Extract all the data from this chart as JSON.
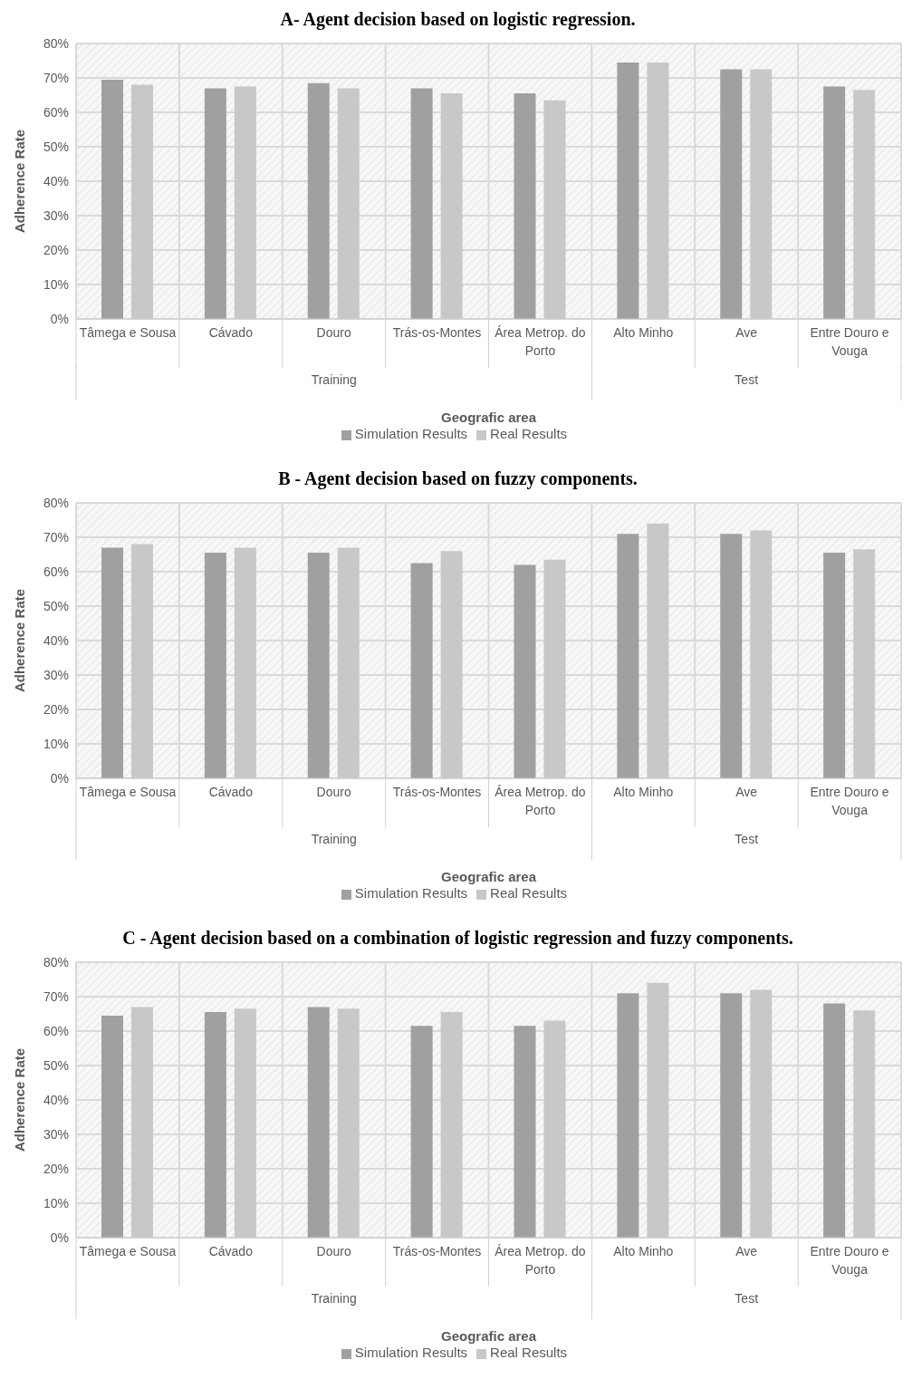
{
  "chart_data": [
    {
      "type": "bar",
      "title": "A- Agent decision based on logistic regression.",
      "xlabel": "Geografic area",
      "ylabel": "Adherence Rate",
      "categories": [
        "Tâmega e Sousa",
        "Cávado",
        "Douro",
        "Trás-os-Montes",
        "Área Metrop. do Porto",
        "Alto Minho",
        "Ave",
        "Entre Douro e Vouga"
      ],
      "series": [
        {
          "name": "Simulation Results",
          "color": "#a0a0a0",
          "values": [
            69.5,
            67,
            68.5,
            67,
            65.5,
            74.5,
            72.5,
            67.5
          ]
        },
        {
          "name": "Real Results",
          "color": "#c8c8c8",
          "values": [
            68,
            67.5,
            67,
            65.5,
            63.5,
            74.5,
            72.5,
            66.5
          ]
        }
      ],
      "ylim": [
        0,
        80
      ],
      "yticks": [
        {
          "value": 0,
          "label": "0%"
        },
        {
          "value": 10,
          "label": "10%"
        },
        {
          "value": 20,
          "label": "20%"
        },
        {
          "value": 30,
          "label": "30%"
        },
        {
          "value": 40,
          "label": "40%"
        },
        {
          "value": 50,
          "label": "50%"
        },
        {
          "value": 60,
          "label": "60%"
        },
        {
          "value": 70,
          "label": "70%"
        },
        {
          "value": 80,
          "label": "80%"
        }
      ],
      "grid": true,
      "legend": "bottom",
      "annotations": [
        "Training",
        "Test"
      ]
    },
    {
      "type": "bar",
      "title": "B - Agent decision based on fuzzy components.",
      "xlabel": "Geografic area",
      "ylabel": "Adherence Rate",
      "categories": [
        "Tâmega e Sousa",
        "Cávado",
        "Douro",
        "Trás-os-Montes",
        "Área Metrop. do Porto",
        "Alto Minho",
        "Ave",
        "Entre Douro e Vouga"
      ],
      "series": [
        {
          "name": "Simulation Results",
          "color": "#a0a0a0",
          "values": [
            67,
            65.5,
            65.5,
            62.5,
            62,
            71,
            71,
            65.5
          ]
        },
        {
          "name": "Real Results",
          "color": "#c8c8c8",
          "values": [
            68,
            67,
            67,
            66,
            63.5,
            74,
            72,
            66.5
          ]
        }
      ],
      "ylim": [
        0,
        80
      ],
      "yticks": [
        {
          "value": 0,
          "label": "0%"
        },
        {
          "value": 10,
          "label": "10%"
        },
        {
          "value": 20,
          "label": "20%"
        },
        {
          "value": 30,
          "label": "30%"
        },
        {
          "value": 40,
          "label": "40%"
        },
        {
          "value": 50,
          "label": "50%"
        },
        {
          "value": 60,
          "label": "60%"
        },
        {
          "value": 70,
          "label": "70%"
        },
        {
          "value": 80,
          "label": "80%"
        }
      ],
      "grid": true,
      "legend": "bottom",
      "annotations": [
        "Training",
        "Test"
      ]
    },
    {
      "type": "bar",
      "title": "C - Agent decision based on a combination of logistic regression and fuzzy components.",
      "xlabel": "Geografic area",
      "ylabel": "Adherence Rate",
      "categories": [
        "Tâmega e Sousa",
        "Cávado",
        "Douro",
        "Trás-os-Montes",
        "Área Metrop. do Porto",
        "Alto Minho",
        "Ave",
        "Entre Douro e Vouga"
      ],
      "series": [
        {
          "name": "Simulation Results",
          "color": "#a0a0a0",
          "values": [
            64.5,
            65.5,
            67,
            61.5,
            61.5,
            71,
            71,
            68
          ]
        },
        {
          "name": "Real Results",
          "color": "#c8c8c8",
          "values": [
            67,
            66.5,
            66.5,
            65.5,
            63,
            74,
            72,
            66
          ]
        }
      ],
      "ylim": [
        0,
        80
      ],
      "yticks": [
        {
          "value": 0,
          "label": "0%"
        },
        {
          "value": 10,
          "label": "10%"
        },
        {
          "value": 20,
          "label": "20%"
        },
        {
          "value": 30,
          "label": "30%"
        },
        {
          "value": 40,
          "label": "40%"
        },
        {
          "value": 50,
          "label": "50%"
        },
        {
          "value": 60,
          "label": "60%"
        },
        {
          "value": 70,
          "label": "70%"
        },
        {
          "value": 80,
          "label": "80%"
        }
      ],
      "grid": true,
      "legend": "bottom",
      "annotations": [
        "Training",
        "Test"
      ]
    }
  ]
}
